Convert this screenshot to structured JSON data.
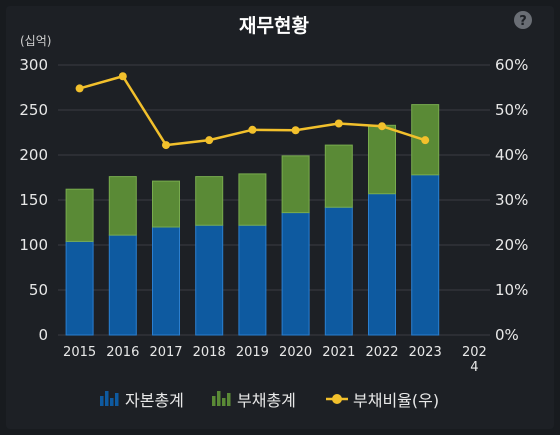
{
  "chart_data": {
    "type": "bar",
    "title": "재무현황",
    "y_unit_label": "(십억)",
    "categories": [
      "2015",
      "2016",
      "2017",
      "2018",
      "2019",
      "2020",
      "2021",
      "2022",
      "2023",
      "2024"
    ],
    "series": [
      {
        "name": "자본총계",
        "kind": "bar",
        "stack": "total",
        "axis": "left",
        "color": "#0e5aa0",
        "values": [
          104,
          111,
          120,
          122,
          122,
          136,
          142,
          157,
          178,
          null
        ]
      },
      {
        "name": "부채총계",
        "kind": "bar",
        "stack": "total",
        "axis": "left",
        "color": "#5a8a36",
        "values": [
          58,
          65,
          51,
          54,
          57,
          63,
          69,
          76,
          78,
          null
        ]
      },
      {
        "name": "부채비율(우)",
        "kind": "line",
        "axis": "right",
        "color": "#f2c02c",
        "values": [
          54.8,
          57.5,
          42.2,
          43.3,
          45.6,
          45.5,
          47.0,
          46.4,
          43.3,
          null
        ]
      }
    ],
    "y_left": {
      "min": 0,
      "max": 300,
      "ticks": [
        "0",
        "50",
        "100",
        "150",
        "200",
        "250",
        "300"
      ]
    },
    "y_right": {
      "min": 0,
      "max": 60,
      "ticks": [
        "0%",
        "10%",
        "20%",
        "30%",
        "40%",
        "50%",
        "60%"
      ]
    },
    "grid": true,
    "legend_position": "bottom-center"
  },
  "help_icon": {
    "symbol": "?",
    "icon": "question-circle-icon"
  },
  "colors": {
    "background": "#1d2025",
    "grid": "#3a3d42",
    "equity": "#0e5aa0",
    "liability": "#5a8a36",
    "ratio": "#f2c02c"
  }
}
